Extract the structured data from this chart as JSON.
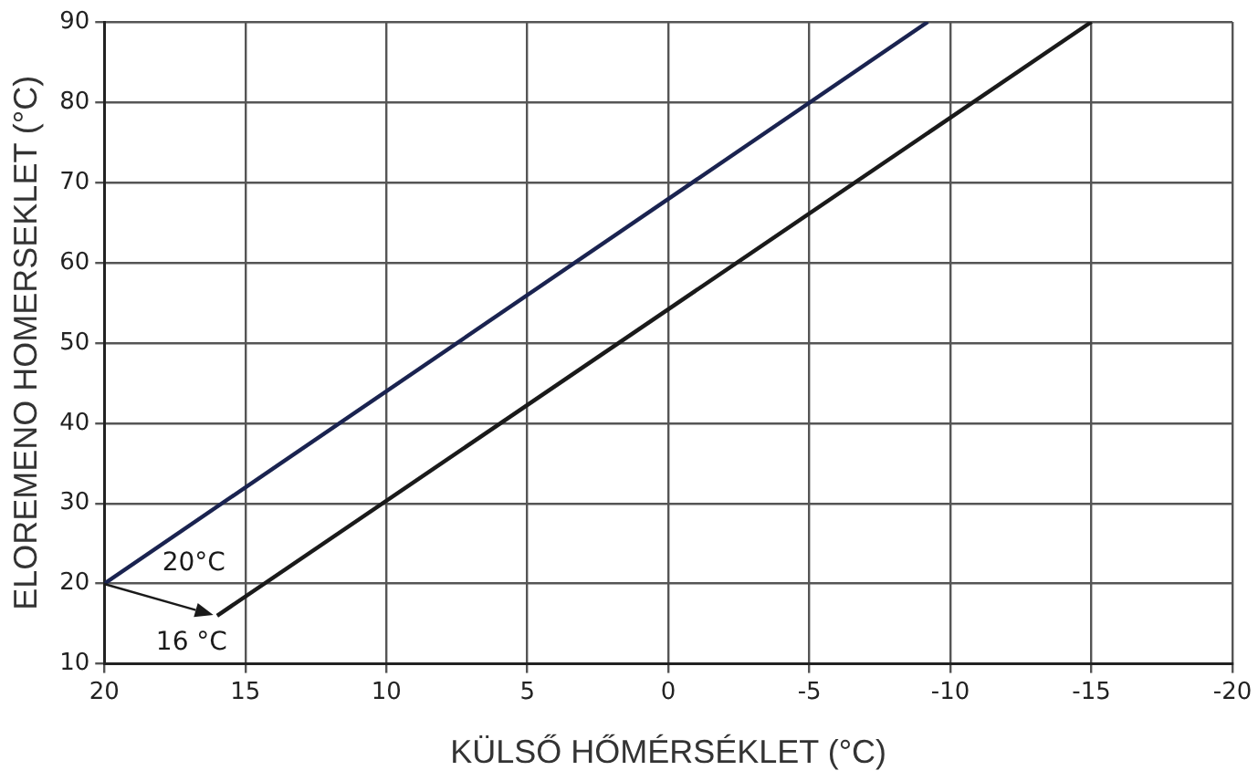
{
  "chart_data": {
    "type": "line",
    "xlabel": "KÜLSŐ HŐMÉRSÉKLET (°C)",
    "ylabel": "ELOREMENO HOMERSEKLET (°C)",
    "xlim": [
      20,
      -20
    ],
    "xticks": [
      20,
      15,
      10,
      5,
      0,
      -5,
      -10,
      -15,
      -20
    ],
    "ylim": [
      10,
      90
    ],
    "yticks": [
      10,
      20,
      30,
      40,
      50,
      60,
      70,
      80,
      90
    ],
    "series": [
      {
        "x": [
          20,
          -9.2
        ],
        "values": [
          20,
          90
        ],
        "color": "#1a2350"
      },
      {
        "x": [
          16,
          -15
        ],
        "values": [
          16,
          90
        ],
        "color": "#1a1a1a"
      }
    ],
    "annotations": [
      {
        "text": "20°C",
        "x": 20,
        "y": 20
      },
      {
        "text": "16 °C",
        "x": 16,
        "y": 16
      }
    ],
    "grid": true,
    "marker": "none",
    "line_style": "solid",
    "legend": false
  }
}
